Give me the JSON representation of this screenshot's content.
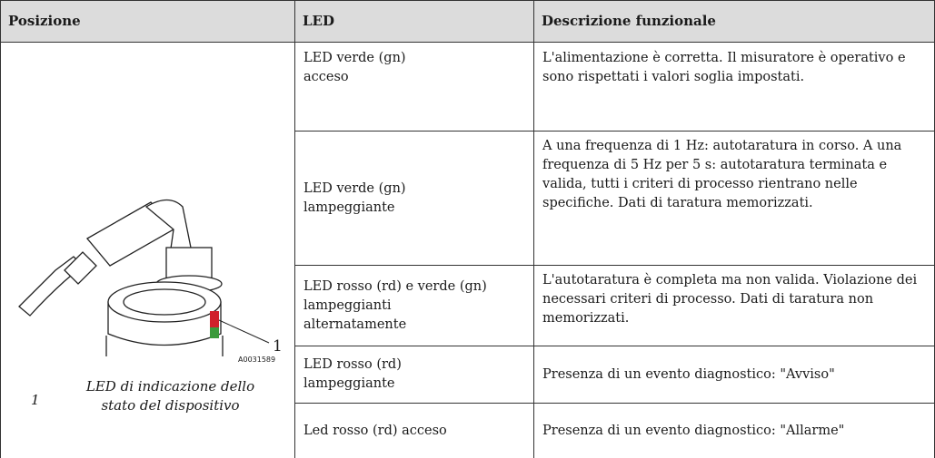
{
  "table": {
    "headers": [
      "Posizione",
      "LED",
      "Descrizione funzionale"
    ],
    "figure": {
      "callout": "1",
      "code": "A0031589",
      "legend": {
        "number": "1",
        "text": "LED di indicazione dello stato del dispositivo"
      }
    },
    "rows": [
      {
        "led": [
          "LED verde (gn)",
          "acceso"
        ],
        "description": "L'alimentazione è corretta. Il misuratore è operativo e sono rispettati i valori soglia impostati."
      },
      {
        "led": [
          "LED verde (gn)",
          "lampeggiante"
        ],
        "description": "A una frequenza di 1 Hz: autotaratura in corso. A una frequenza di 5 Hz per 5 s: autotaratura terminata e valida, tutti i criteri di processo rientrano nelle specifiche. Dati di taratura memorizzati."
      },
      {
        "led": [
          "LED rosso (rd) e verde (gn)",
          "lampeggianti",
          "alternatamente"
        ],
        "description": "L'autotaratura è completa ma non valida. Violazione dei necessari criteri di processo. Dati di taratura non memorizzati."
      },
      {
        "led": [
          "LED rosso (rd)",
          "lampeggiante"
        ],
        "description": "Presenza di un evento diagnostico: \"Avviso\""
      },
      {
        "led": [
          "Led rosso (rd) acceso"
        ],
        "description": "Presenza di un evento diagnostico: \"Allarme\""
      }
    ]
  }
}
